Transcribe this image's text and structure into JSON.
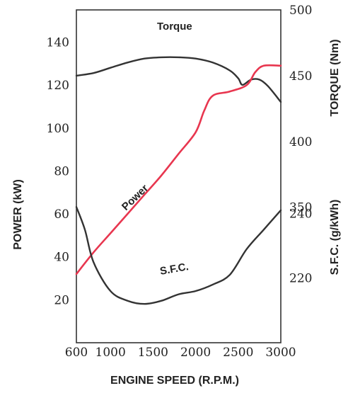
{
  "chart_data": {
    "type": "line",
    "title": "",
    "xlabel": "ENGINE SPEED (R.P.M.)",
    "xlim": [
      600,
      3000
    ],
    "x_ticks": [
      "600",
      "1000",
      "1500",
      "2000",
      "2500",
      "3000"
    ],
    "axes": {
      "power": {
        "label": "POWER (kW)",
        "lim": [
          0,
          155
        ],
        "ticks": [
          "20",
          "40",
          "60",
          "80",
          "100",
          "120",
          "140"
        ]
      },
      "torque": {
        "label": "TORQUE (Nm)",
        "lim": [
          247,
          500
        ],
        "ticks": [
          "350",
          "400",
          "450",
          "500"
        ]
      },
      "sfc": {
        "label": "S.F.C. (g/kWh)",
        "lim": [
          200,
          303
        ],
        "ticks": [
          "220",
          "240"
        ]
      }
    },
    "series": [
      {
        "name": "Torque",
        "axis": "torque",
        "color": "#333333",
        "x": [
          600,
          800,
          1000,
          1200,
          1400,
          1600,
          1800,
          2000,
          2200,
          2400,
          2500,
          2550,
          2650,
          2750,
          2850,
          3000
        ],
        "y": [
          450,
          452,
          456,
          460,
          463,
          464,
          464,
          463,
          460,
          454,
          448,
          443,
          447,
          447,
          442,
          430
        ]
      },
      {
        "name": "Power",
        "axis": "power",
        "color": "#e8364f",
        "x": [
          600,
          800,
          1000,
          1200,
          1400,
          1600,
          1800,
          2000,
          2100,
          2200,
          2400,
          2600,
          2700,
          2800,
          3000
        ],
        "y": [
          32,
          42,
          51,
          60,
          69,
          78,
          88,
          98,
          108,
          115,
          117,
          120,
          126,
          129,
          129
        ]
      },
      {
        "name": "S.F.C.",
        "axis": "sfc",
        "color": "#333333",
        "x": [
          600,
          700,
          800,
          1000,
          1200,
          1400,
          1600,
          1800,
          2000,
          2200,
          2400,
          2600,
          2800,
          3000
        ],
        "y": [
          242,
          235,
          225,
          216,
          213,
          212,
          213,
          215,
          216,
          218,
          221,
          229,
          235,
          241
        ]
      }
    ]
  }
}
